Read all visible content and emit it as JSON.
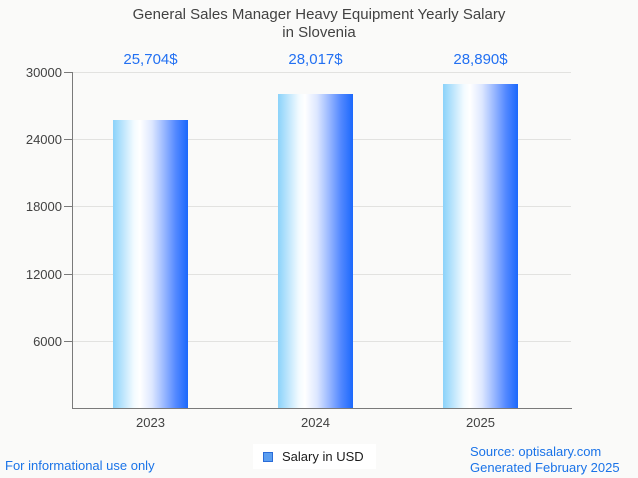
{
  "page": {
    "background": "#fafaf9",
    "footer_left": "For informational use only",
    "footer_right_line1": "Source: optisalary.com",
    "footer_right_line2": "Generated February 2025"
  },
  "title_lines": {
    "line1": "General Sales Manager Heavy Equipment Yearly Salary",
    "line2": "in Slovenia"
  },
  "legend": {
    "label": "Salary in USD",
    "swatch_fill": "#5b9ef0",
    "swatch_border": "#2a6cd8",
    "position": "bottom-center"
  },
  "chart_data": {
    "type": "bar",
    "title": "General Sales Manager Heavy Equipment Yearly Salary in Slovenia",
    "categories": [
      "2023",
      "2024",
      "2025"
    ],
    "series": [
      {
        "name": "Salary in USD",
        "values": [
          25704,
          28017,
          28890
        ]
      }
    ],
    "value_labels": [
      "25,704$",
      "28,017$",
      "28,890$"
    ],
    "xlabel": "",
    "ylabel": "",
    "ylim": [
      0,
      30000
    ],
    "yticks": [
      30000,
      24000,
      18000,
      12000,
      6000
    ],
    "grid": true,
    "legend_position": "bottom",
    "colors": {
      "bar_gradient_left": "#8bd2fa",
      "bar_gradient_middle": "#ffffff",
      "bar_gradient_right": "#1b68fc",
      "value_label_text": "#2270f2",
      "axis_line": "#7a7a7a",
      "gridline": "#e2e2e0",
      "tick_label_text": "#424242",
      "title_text": "#424242",
      "footer_text": "#1a73e8"
    }
  }
}
